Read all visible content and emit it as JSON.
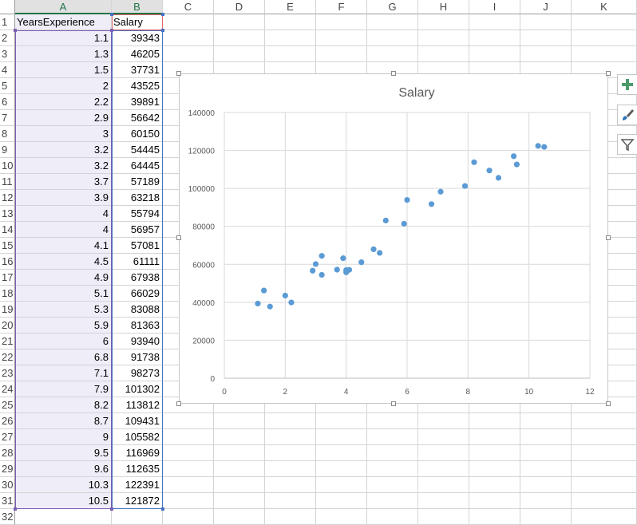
{
  "columns": [
    "A",
    "B",
    "C",
    "D",
    "E",
    "F",
    "G",
    "H",
    "I",
    "J",
    "K"
  ],
  "rows": [
    "1",
    "2",
    "3",
    "4",
    "5",
    "6",
    "7",
    "8",
    "9",
    "10",
    "11",
    "12",
    "13",
    "14",
    "15",
    "16",
    "17",
    "18",
    "19",
    "20",
    "21",
    "22",
    "23",
    "24",
    "25",
    "26",
    "27",
    "28",
    "29",
    "30",
    "31",
    "32"
  ],
  "headers": {
    "a": "YearsExperience",
    "b": "Salary"
  },
  "table": [
    [
      "1.1",
      "39343"
    ],
    [
      "1.3",
      "46205"
    ],
    [
      "1.5",
      "37731"
    ],
    [
      "2",
      "43525"
    ],
    [
      "2.2",
      "39891"
    ],
    [
      "2.9",
      "56642"
    ],
    [
      "3",
      "60150"
    ],
    [
      "3.2",
      "54445"
    ],
    [
      "3.2",
      "64445"
    ],
    [
      "3.7",
      "57189"
    ],
    [
      "3.9",
      "63218"
    ],
    [
      "4",
      "55794"
    ],
    [
      "4",
      "56957"
    ],
    [
      "4.1",
      "57081"
    ],
    [
      "4.5",
      "61111"
    ],
    [
      "4.9",
      "67938"
    ],
    [
      "5.1",
      "66029"
    ],
    [
      "5.3",
      "83088"
    ],
    [
      "5.9",
      "81363"
    ],
    [
      "6",
      "93940"
    ],
    [
      "6.8",
      "91738"
    ],
    [
      "7.1",
      "98273"
    ],
    [
      "7.9",
      "101302"
    ],
    [
      "8.2",
      "113812"
    ],
    [
      "8.7",
      "109431"
    ],
    [
      "9",
      "105582"
    ],
    [
      "9.5",
      "116969"
    ],
    [
      "9.6",
      "112635"
    ],
    [
      "10.3",
      "122391"
    ],
    [
      "10.5",
      "121872"
    ]
  ],
  "chart_side_buttons": [
    {
      "icon": "plus-icon"
    },
    {
      "icon": "brush-icon"
    },
    {
      "icon": "filter-icon"
    }
  ],
  "colors": {
    "marker": "#5b9bd5",
    "gridline": "#d9d9d9",
    "selection_a": "#7b5fb5",
    "selection_b": "#4472c4",
    "header_b": "#e06666"
  },
  "chart_data": {
    "type": "scatter",
    "title": "Salary",
    "xlabel": "",
    "ylabel": "",
    "xlim": [
      0,
      12
    ],
    "ylim": [
      0,
      140000
    ],
    "xticks": [
      "0",
      "2",
      "4",
      "6",
      "8",
      "10",
      "12"
    ],
    "yticks": [
      "0",
      "20000",
      "40000",
      "60000",
      "80000",
      "100000",
      "120000",
      "140000"
    ],
    "grid": true,
    "series": [
      {
        "x": [
          1.1,
          1.3,
          1.5,
          2,
          2.2,
          2.9,
          3,
          3.2,
          3.2,
          3.7,
          3.9,
          4,
          4,
          4.1,
          4.5,
          4.9,
          5.1,
          5.3,
          5.9,
          6,
          6.8,
          7.1,
          7.9,
          8.2,
          8.7,
          9,
          9.5,
          9.6,
          10.3,
          10.5
        ],
        "y": [
          39343,
          46205,
          37731,
          43525,
          39891,
          56642,
          60150,
          54445,
          64445,
          57189,
          63218,
          55794,
          56957,
          57081,
          61111,
          67938,
          66029,
          83088,
          81363,
          93940,
          91738,
          98273,
          101302,
          113812,
          109431,
          105582,
          116969,
          112635,
          122391,
          121872
        ]
      }
    ]
  }
}
